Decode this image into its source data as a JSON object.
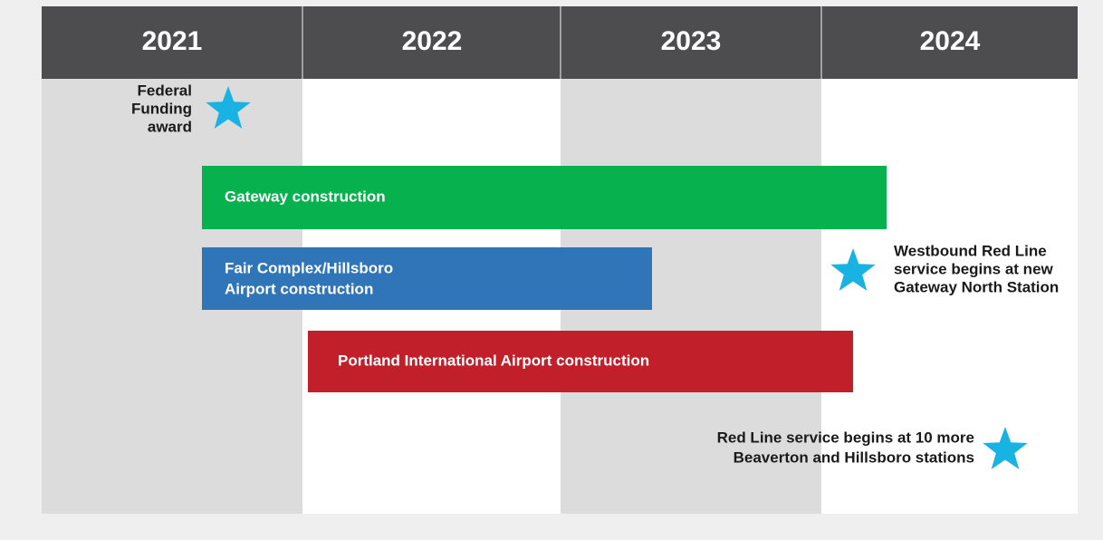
{
  "header": {
    "years": [
      "2021",
      "2022",
      "2023",
      "2024"
    ]
  },
  "bars": [
    {
      "label": [
        "Gateway construction"
      ]
    },
    {
      "label": [
        "Fair Complex/Hillsboro",
        "Airport construction"
      ]
    },
    {
      "label": [
        "Portland International Airport construction"
      ]
    }
  ],
  "milestones": [
    {
      "label": [
        "Federal",
        "Funding",
        "award"
      ]
    },
    {
      "label": [
        "Westbound Red Line",
        "service begins at new",
        "Gateway North Station"
      ]
    },
    {
      "label": [
        "Red Line service begins at 10 more",
        "Beaverton and Hillsboro stations"
      ]
    }
  ]
}
